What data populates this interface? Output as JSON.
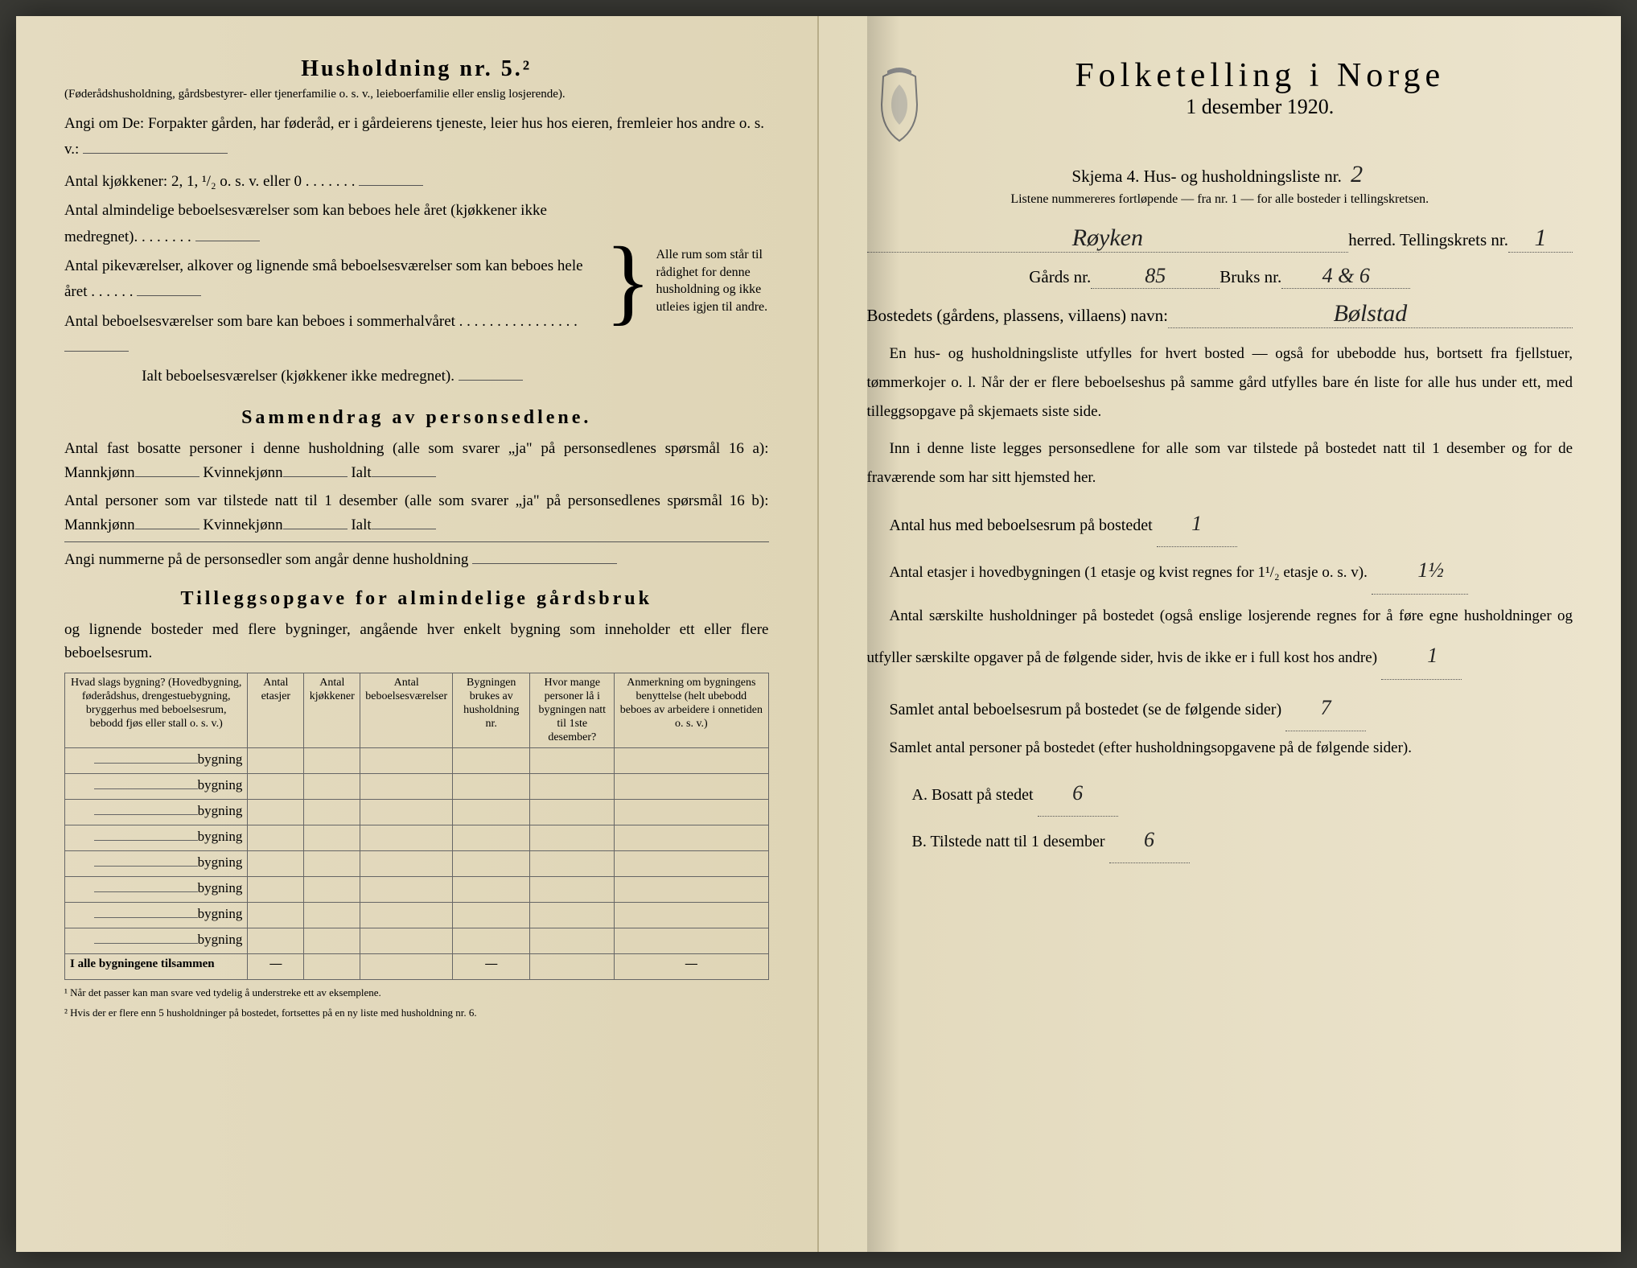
{
  "left": {
    "heading": "Husholdning nr. 5.²",
    "heading_note": "(Føderådshusholdning, gårdsbestyrer- eller tjenerfamilie o. s. v., leieboerfamilie eller enslig losjerende).",
    "angi": "Angi om De: Forpakter gården, har føderåd, er i gårdeierens tjeneste, leier hus hos eieren, fremleier hos andre o. s. v.:",
    "kjokkener": "Antal kjøkkener: 2, 1, ¹/₂ o. s. v. eller 0  .  .  .  .  .  .  .",
    "b1": "Antal almindelige beboelsesværelser som kan beboes hele året (kjøkkener ikke medregnet).  .  .  .  .  .  .  .",
    "b2": "Antal pikeværelser, alkover og lignende små beboelsesværelser som kan beboes hele året  .  .  .  .  .  .",
    "b3": "Antal beboelsesværelser som bare kan beboes i sommerhalvåret .  .  .  .  .  .  .  .  .  .  .  .  .  .  .  .",
    "ialt": "Ialt beboelsesværelser (kjøkkener ikke medregnet).",
    "brace_text": "Alle rum som står til rådighet for denne husholdning og ikke utleies igjen til andre.",
    "sammendrag_head": "Sammendrag av personsedlene.",
    "s1": "Antal fast bosatte personer i denne husholdning (alle som svarer „ja\" på personsedlenes spørsmål 16 a): Mannkjønn",
    "s1_kv": "Kvinnekjønn",
    "s1_ialt": "Ialt",
    "s2": "Antal personer som var tilstede natt til 1 desember (alle som svarer „ja\" på personsedlenes spørsmål 16 b): Mannkjønn",
    "angi_num": "Angi nummerne på de personsedler som angår denne husholdning",
    "tillegg_head": "Tilleggsopgave for almindelige gårdsbruk",
    "tillegg_sub": "og lignende bosteder med flere bygninger, angående hver enkelt bygning som inneholder ett eller flere beboelsesrum.",
    "table": {
      "headers": [
        "Hvad slags bygning?\n(Hovedbygning, føderådshus, drengestuebygning, bryggerhus med beboelsesrum, bebodd fjøs eller stall o. s. v.)",
        "Antal etasjer",
        "Antal kjøkkener",
        "Antal beboelsesværelser",
        "Bygningen brukes av husholdning nr.",
        "Hvor mange personer lå i bygningen natt til 1ste desember?",
        "Anmerkning om bygningens benyttelse (helt ubebodd beboes av arbeidere i onnetiden o. s. v.)"
      ],
      "row_label": "bygning",
      "row_count": 8,
      "sum_label": "I alle bygningene tilsammen"
    },
    "footnote1": "¹  Når det passer kan man svare ved tydelig å understreke ett av eksemplene.",
    "footnote2": "²  Hvis der er flere enn 5 husholdninger på bostedet, fortsettes på en ny liste med husholdning nr. 6."
  },
  "right": {
    "title": "Folketelling i Norge",
    "subtitle": "1 desember 1920.",
    "skjema": "Skjema 4.  Hus- og husholdningsliste nr.",
    "skjema_val": "2",
    "listene": "Listene nummereres fortløpende — fra nr. 1 — for alle bosteder i tellingskretsen.",
    "herred_val": "Røyken",
    "herred_label": "herred.   Tellingskrets nr.",
    "krets_val": "1",
    "gards_label": "Gårds nr.",
    "gards_val": "85",
    "bruks_label": "Bruks nr.",
    "bruks_val": "4 & 6",
    "bosted_label": "Bostedets (gårdens, plassens, villaens) navn:",
    "bosted_val": "Bølstad",
    "para1": "En hus- og husholdningsliste utfylles for hvert bosted — også for ubebodde hus, bortsett fra fjellstuer, tømmerkojer o. l.  Når der er flere beboelseshus på samme gård utfylles bare én liste for alle hus under ett, med tilleggsopgave på skjemaets siste side.",
    "para2": "Inn i denne liste legges personsedlene for alle som var tilstede på bostedet natt til 1 desember og for de fraværende som har sitt hjemsted her.",
    "q1": "Antal hus med beboelsesrum på bostedet",
    "q1_val": "1",
    "q2a": "Antal etasjer i hovedbygningen (1 etasje og kvist regnes for 1¹/₂",
    "q2b": "etasje o. s. v).",
    "q2_val": "1½",
    "q3": "Antal særskilte husholdninger på bostedet (også enslige losjerende regnes for å føre egne husholdninger og utfyller særskilte opgaver på de følgende sider, hvis de ikke er i full kost hos andre)",
    "q3_val": "1",
    "q4": "Samlet antal beboelsesrum på bostedet (se de følgende sider)",
    "q4_val": "7",
    "q5": "Samlet antal personer på bostedet (efter husholdningsopgavene på de følgende sider).",
    "q5a_label": "A.  Bosatt på stedet",
    "q5a_val": "6",
    "q5b_label": "B.  Tilstede natt til 1 desember",
    "q5b_val": "6"
  }
}
